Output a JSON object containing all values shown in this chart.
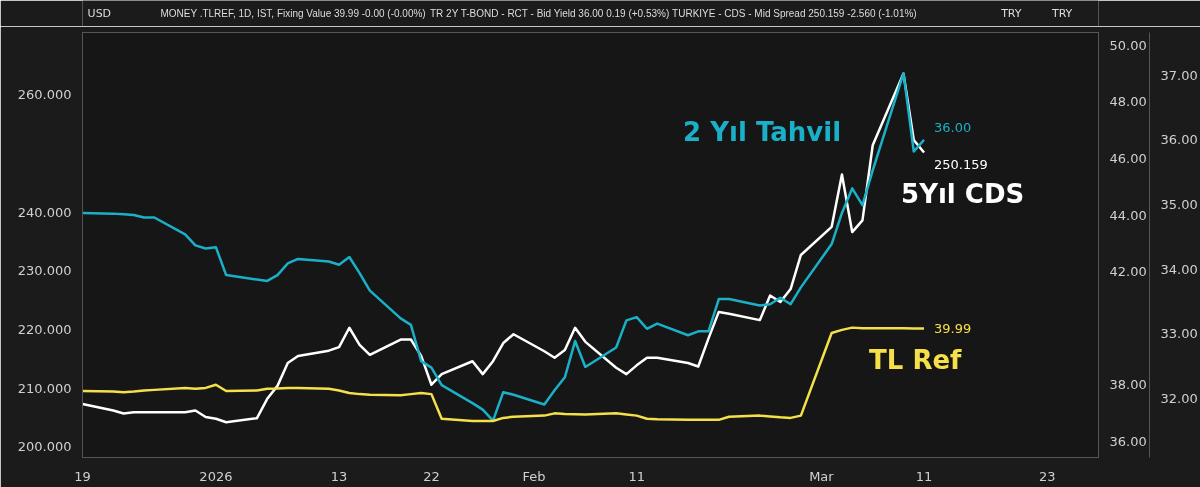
{
  "chart_data": {
    "type": "line",
    "annotations": [
      "MONEY .TLREF, 1D, IST, Fixing Value 39.99 -0.00 (-0.00%)",
      "TR 2Y T-BOND - RCT - Bid Yield 36.00 0.19 (+0.53%)",
      "TURKIYE - CDS - Mid Spread 250.159 -2.560 (-1.01%)"
    ],
    "ylabel": "USD",
    "y2label": "TRY",
    "y3label": "TRY",
    "x": [
      "2025-12-19",
      "2025-12-22",
      "2025-12-23",
      "2025-12-24",
      "2025-12-25",
      "2025-12-26",
      "2025-12-29",
      "2025-12-30",
      "2025-12-31",
      "2026-01-01",
      "2026-01-02",
      "2026-01-05",
      "2026-01-06",
      "2026-01-07",
      "2026-01-08",
      "2026-01-09",
      "2026-01-12",
      "2026-01-13",
      "2026-01-14",
      "2026-01-15",
      "2026-01-16",
      "2026-01-19",
      "2026-01-20",
      "2026-01-21",
      "2026-01-22",
      "2026-01-23",
      "2026-01-26",
      "2026-01-27",
      "2026-01-28",
      "2026-01-29",
      "2026-01-30",
      "2026-02-02",
      "2026-02-03",
      "2026-02-04",
      "2026-02-05",
      "2026-02-06",
      "2026-02-09",
      "2026-02-10",
      "2026-02-11",
      "2026-02-12",
      "2026-02-13",
      "2026-02-16",
      "2026-02-17",
      "2026-02-18",
      "2026-02-19",
      "2026-02-20",
      "2026-02-23",
      "2026-02-24",
      "2026-02-25",
      "2026-02-26",
      "2026-02-27",
      "2026-03-02",
      "2026-03-03",
      "2026-03-04",
      "2026-03-05",
      "2026-03-06",
      "2026-03-09",
      "2026-03-10",
      "2026-03-11"
    ],
    "series": [
      {
        "name": "5Yıl CDS",
        "color": "#ffffff",
        "values": [
          207.3,
          206.2,
          205.7,
          205.9,
          205.9,
          205.9,
          205.9,
          206.2,
          205.1,
          204.8,
          204.2,
          204.9,
          208.2,
          210.4,
          214.3,
          215.5,
          216.4,
          217.0,
          220.3,
          217.4,
          215.7,
          218.3,
          218.3,
          215.5,
          210.6,
          212.4,
          214.6,
          212.4,
          214.6,
          217.7,
          219.2,
          216.3,
          215.2,
          216.5,
          220.3,
          217.9,
          213.5,
          212.4,
          213.9,
          215.2,
          215.2,
          214.3,
          213.7,
          218.5,
          223.0,
          222.7,
          221.6,
          225.8,
          224.7,
          226.9,
          232.7,
          237.5,
          246.4,
          236.6,
          238.6,
          251.4,
          263.6,
          252.3,
          250.159
        ],
        "value_labels": [
          null,
          null,
          null,
          null,
          null,
          null,
          null,
          null,
          null,
          null,
          null,
          null,
          null,
          null,
          null,
          null,
          null,
          null,
          null,
          null,
          null,
          null,
          null,
          null,
          null,
          null,
          null,
          null,
          null,
          null,
          null,
          null,
          null,
          null,
          null,
          null,
          null,
          null,
          null,
          null,
          null,
          null,
          null,
          null,
          null,
          null,
          null,
          null,
          null,
          null,
          null,
          null,
          null,
          null,
          null,
          null,
          null,
          null,
          "250.159"
        ]
      },
      {
        "name": "2 Yıl Tahvil",
        "color": "#1ab0c8",
        "axis": "y3",
        "values": [
          34.87,
          34.86,
          34.85,
          34.84,
          34.8,
          34.8,
          34.54,
          34.37,
          34.32,
          34.34,
          33.91,
          33.84,
          33.82,
          33.91,
          34.09,
          34.16,
          34.12,
          34.07,
          34.19,
          33.94,
          33.67,
          33.24,
          33.14,
          32.58,
          32.48,
          32.21,
          31.93,
          31.83,
          31.66,
          32.1,
          32.06,
          31.91,
          32.13,
          32.33,
          32.89,
          32.49,
          32.79,
          33.21,
          33.26,
          33.08,
          33.16,
          32.98,
          33.04,
          33.04,
          33.54,
          33.54,
          33.44,
          33.46,
          33.56,
          33.46,
          33.72,
          34.39,
          34.87,
          35.25,
          34.99,
          35.53,
          37.03,
          35.82,
          36.0
        ],
        "value_labels": [
          null,
          null,
          null,
          null,
          null,
          null,
          null,
          null,
          null,
          null,
          null,
          null,
          null,
          null,
          null,
          null,
          null,
          null,
          null,
          null,
          null,
          null,
          null,
          null,
          null,
          null,
          null,
          null,
          null,
          null,
          null,
          null,
          null,
          null,
          null,
          null,
          null,
          null,
          null,
          null,
          null,
          null,
          null,
          null,
          null,
          null,
          null,
          null,
          null,
          null,
          null,
          null,
          null,
          null,
          null,
          null,
          null,
          null,
          "36.00"
        ]
      },
      {
        "name": "TL Ref",
        "color": "#f5e04a",
        "axis": "y2",
        "values": [
          37.78,
          37.76,
          37.74,
          37.76,
          37.8,
          37.82,
          37.89,
          37.86,
          37.89,
          38.0,
          37.78,
          37.8,
          37.86,
          37.87,
          37.89,
          37.89,
          37.86,
          37.8,
          37.71,
          37.67,
          37.65,
          37.63,
          37.67,
          37.71,
          37.67,
          36.8,
          36.72,
          36.72,
          36.72,
          36.83,
          36.87,
          36.91,
          36.99,
          36.97,
          36.96,
          36.95,
          36.99,
          36.95,
          36.91,
          36.8,
          36.78,
          36.76,
          36.76,
          36.76,
          36.76,
          36.87,
          36.91,
          36.88,
          36.85,
          36.83,
          36.91,
          39.83,
          39.94,
          40.02,
          40.0,
          40.0,
          40.0,
          39.99,
          39.99
        ],
        "value_labels": [
          null,
          null,
          null,
          null,
          null,
          null,
          null,
          null,
          null,
          null,
          null,
          null,
          null,
          null,
          null,
          null,
          null,
          null,
          null,
          null,
          null,
          null,
          null,
          null,
          null,
          null,
          null,
          null,
          null,
          null,
          null,
          null,
          null,
          null,
          null,
          null,
          null,
          null,
          null,
          null,
          null,
          null,
          null,
          null,
          null,
          null,
          null,
          null,
          null,
          null,
          null,
          null,
          null,
          null,
          null,
          null,
          null,
          null,
          "39.99"
        ]
      }
    ],
    "xlim": [
      "2025-12-19",
      "2026-03-28"
    ],
    "xticks": [
      {
        "value": "2025-12-19",
        "label": "19"
      },
      {
        "value": "2026-01-01",
        "label": "2026"
      },
      {
        "value": "2026-01-13",
        "label": "13"
      },
      {
        "value": "2026-01-22",
        "label": "22"
      },
      {
        "value": "2026-02-01",
        "label": "Feb"
      },
      {
        "value": "2026-02-11",
        "label": "11"
      },
      {
        "value": "2026-03-01",
        "label": "Mar"
      },
      {
        "value": "2026-03-11",
        "label": "11"
      },
      {
        "value": "2026-03-23",
        "label": "23"
      }
    ],
    "ylim": [
      198.2,
      270.6
    ],
    "yticks": [
      {
        "value": 200,
        "label": "200.000"
      },
      {
        "value": 210,
        "label": "210.000"
      },
      {
        "value": 220,
        "label": "220.000"
      },
      {
        "value": 230,
        "label": "230.000"
      },
      {
        "value": 240,
        "label": "240.000"
      },
      {
        "value": 260,
        "label": "260.000"
      }
    ],
    "y2lim": [
      35.43,
      50.45
    ],
    "y2ticks": [
      {
        "value": 36,
        "label": "36.00"
      },
      {
        "value": 38,
        "label": "38.00"
      },
      {
        "value": 42,
        "label": "42.00"
      },
      {
        "value": 44,
        "label": "44.00"
      },
      {
        "value": 46,
        "label": "46.00"
      },
      {
        "value": 48,
        "label": "48.00"
      },
      {
        "value": 50,
        "label": "50.00"
      }
    ],
    "y3lim": [
      31.09,
      37.66
    ],
    "y3ticks": [
      {
        "value": 32,
        "label": "32.00"
      },
      {
        "value": 33,
        "label": "33.00"
      },
      {
        "value": 34,
        "label": "34.00"
      },
      {
        "value": 35,
        "label": "35.00"
      },
      {
        "value": 36,
        "label": "36.00"
      },
      {
        "value": 37,
        "label": "37.00"
      }
    ],
    "grid": false,
    "marker": "none",
    "line_style": "solid"
  }
}
